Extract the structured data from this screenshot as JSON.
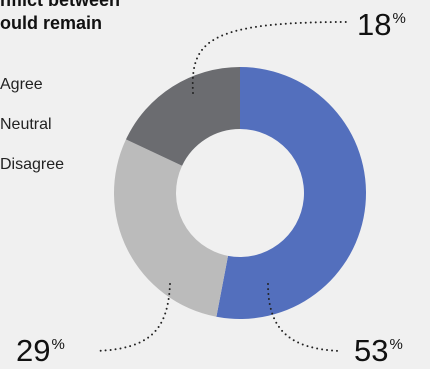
{
  "title_lines": [
    "nflict between",
    "ould remain"
  ],
  "colors": {
    "Agree": "#536fbd",
    "Neutral": "#bbbbbb",
    "Disagree": "#6b6c70",
    "hole": "#ffffff",
    "leader": "#222222"
  },
  "chart_data": {
    "type": "pie",
    "donut": true,
    "title": "nflict between ould remain",
    "categories": [
      "Agree",
      "Neutral",
      "Disagree"
    ],
    "values": [
      53,
      29,
      18
    ],
    "unit": "%",
    "labels": [
      {
        "value": "53",
        "unit": "%"
      },
      {
        "value": "29",
        "unit": "%"
      },
      {
        "value": "18",
        "unit": "%"
      }
    ],
    "legend": [
      "Agree",
      "Neutral",
      "Disagree"
    ],
    "legend_placement": "left"
  }
}
